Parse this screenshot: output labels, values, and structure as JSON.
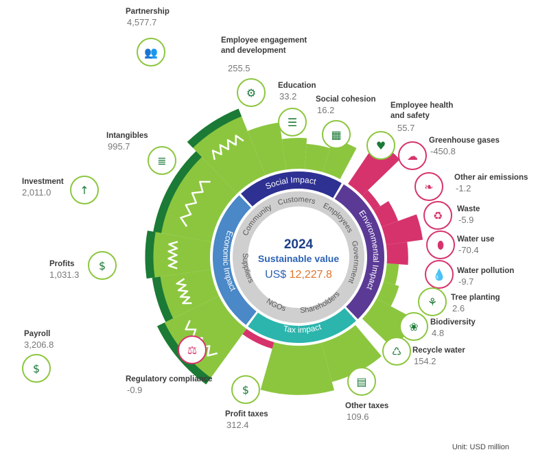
{
  "chart_data": {
    "type": "radial-bar",
    "center": {
      "year": "2024",
      "subtitle": "Sustainable value",
      "currency": "US$",
      "total": "12,227.8"
    },
    "unit_label": "Unit: USD million",
    "groups": [
      {
        "name": "Social Impact",
        "color": "#2e3192"
      },
      {
        "name": "Environmental Impact",
        "color": "#5b3a96"
      },
      {
        "name": "Tax impact",
        "color": "#2bb5ad"
      },
      {
        "name": "Economic Impact",
        "color": "#4a88c7"
      }
    ],
    "stakeholders": [
      "Customers",
      "Employees",
      "Government",
      "Shareholders",
      "NGOs",
      "Suppliers",
      "Community"
    ],
    "items": [
      {
        "name": "Partnership",
        "value": 4577.7,
        "display": "4,577.7",
        "group": "Social Impact",
        "icon": "partnership-icon"
      },
      {
        "name": "Employee engagement and development",
        "value": 255.5,
        "display": "255.5",
        "group": "Social Impact",
        "icon": "head-gear-icon"
      },
      {
        "name": "Education",
        "value": 33.2,
        "display": "33.2",
        "group": "Social Impact",
        "icon": "education-board-icon"
      },
      {
        "name": "Social cohesion",
        "value": 16.2,
        "display": "16.2",
        "group": "Social Impact",
        "icon": "building-icon"
      },
      {
        "name": "Employee health and safety",
        "value": 55.7,
        "display": "55.7",
        "group": "Social Impact",
        "icon": "heart-pulse-icon"
      },
      {
        "name": "Greenhouse gases",
        "value": -450.8,
        "display": "-450.8",
        "group": "Environmental Impact",
        "icon": "cloud-icon"
      },
      {
        "name": "Other air emissions",
        "value": -1.2,
        "display": "-1.2",
        "group": "Environmental Impact",
        "icon": "leaf-icon"
      },
      {
        "name": "Waste",
        "value": -5.9,
        "display": "-5.9",
        "group": "Environmental Impact",
        "icon": "recycle-icon"
      },
      {
        "name": "Water use",
        "value": -70.4,
        "display": "-70.4",
        "group": "Environmental Impact",
        "icon": "faucet-icon"
      },
      {
        "name": "Water pollution",
        "value": -9.7,
        "display": "-9.7",
        "group": "Environmental Impact",
        "icon": "water-drop-icon"
      },
      {
        "name": "Tree planting",
        "value": 2.6,
        "display": "2.6",
        "group": "Environmental Impact",
        "icon": "tree-hands-icon"
      },
      {
        "name": "Biodiversity",
        "value": 4.8,
        "display": "4.8",
        "group": "Environmental Impact",
        "icon": "paw-icon"
      },
      {
        "name": "Recycle water",
        "value": 154.2,
        "display": "154.2",
        "group": "Environmental Impact",
        "icon": "recycle-water-icon"
      },
      {
        "name": "Other taxes",
        "value": 109.6,
        "display": "109.6",
        "group": "Tax impact",
        "icon": "calculator-icon"
      },
      {
        "name": "Profit taxes",
        "value": 312.4,
        "display": "312.4",
        "group": "Tax impact",
        "icon": "hand-money-icon"
      },
      {
        "name": "Regulatory compliance",
        "value": -0.9,
        "display": "-0.9",
        "group": "Tax impact",
        "icon": "scales-icon"
      },
      {
        "name": "Payroll",
        "value": 3206.8,
        "display": "3,206.8",
        "group": "Economic Impact",
        "icon": "payroll-icon"
      },
      {
        "name": "Profits",
        "value": 1031.3,
        "display": "1,031.3",
        "group": "Economic Impact",
        "icon": "money-bag-icon"
      },
      {
        "name": "Investment",
        "value": 2011.0,
        "display": "2,011.0",
        "group": "Economic Impact",
        "icon": "chart-dollar-icon"
      },
      {
        "name": "Intangibles",
        "value": 995.7,
        "display": "995.7",
        "group": "Economic Impact",
        "icon": "document-dollar-icon"
      }
    ],
    "colors": {
      "positive": "#8cc63f",
      "positive_dark": "#1b7a36",
      "negative": "#d6336c",
      "icon_positive_ring": "#8cc63f",
      "icon_negative_ring": "#d6336c"
    }
  }
}
